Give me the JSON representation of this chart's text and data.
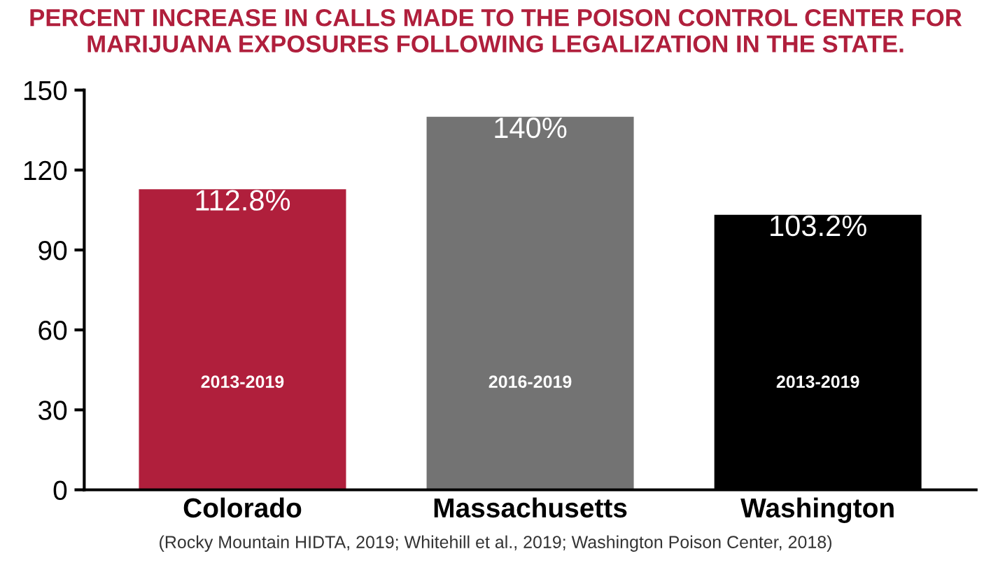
{
  "chart_data": {
    "type": "bar",
    "title": "PERCENT INCREASE IN CALLS MADE TO THE POISON CONTROL CENTER FOR\nMARIJUANA EXPOSURES FOLLOWING LEGALIZATION IN THE STATE.",
    "categories": [
      "Colorado",
      "Massachusetts",
      "Washington"
    ],
    "values": [
      112.8,
      140,
      103.2
    ],
    "colors": [
      "#b01f3c",
      "#737373",
      "#000000"
    ],
    "value_labels": [
      "112.8%",
      "140%",
      "103.2%"
    ],
    "ylim": [
      0,
      150
    ],
    "yticks": [
      0,
      30,
      60,
      90,
      120,
      150
    ],
    "annotations": [
      "2013-2019",
      "2016-2019",
      "2013-2019",
      "(Rocky Mountain HIDTA, 2019; Whitehill et al., 2019; Washington Poison Center, 2018)"
    ],
    "grid": false,
    "legend": false
  }
}
